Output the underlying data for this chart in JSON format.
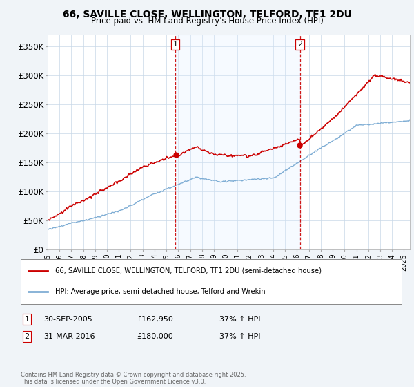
{
  "title": "66, SAVILLE CLOSE, WELLINGTON, TELFORD, TF1 2DU",
  "subtitle": "Price paid vs. HM Land Registry's House Price Index (HPI)",
  "ylabel_ticks": [
    "£0",
    "£50K",
    "£100K",
    "£150K",
    "£200K",
    "£250K",
    "£300K",
    "£350K"
  ],
  "ytick_vals": [
    0,
    50000,
    100000,
    150000,
    200000,
    250000,
    300000,
    350000
  ],
  "ylim": [
    0,
    370000
  ],
  "xlim_start": 1995.0,
  "xlim_end": 2025.5,
  "sale1_date": 2005.75,
  "sale1_price": 162950,
  "sale1_label": "1",
  "sale2_date": 2016.25,
  "sale2_price": 180000,
  "sale2_label": "2",
  "legend_line1": "66, SAVILLE CLOSE, WELLINGTON, TELFORD, TF1 2DU (semi-detached house)",
  "legend_line2": "HPI: Average price, semi-detached house, Telford and Wrekin",
  "footer": "Contains HM Land Registry data © Crown copyright and database right 2025.\nThis data is licensed under the Open Government Licence v3.0.",
  "line_color_property": "#cc0000",
  "line_color_hpi": "#7eadd4",
  "shade_color": "#ddeeff",
  "background_color": "#f0f4f8",
  "plot_bg_color": "#ffffff",
  "grid_color": "#c8d8e8",
  "vline_color": "#cc0000",
  "title_fontsize": 10.5,
  "subtitle_fontsize": 9
}
